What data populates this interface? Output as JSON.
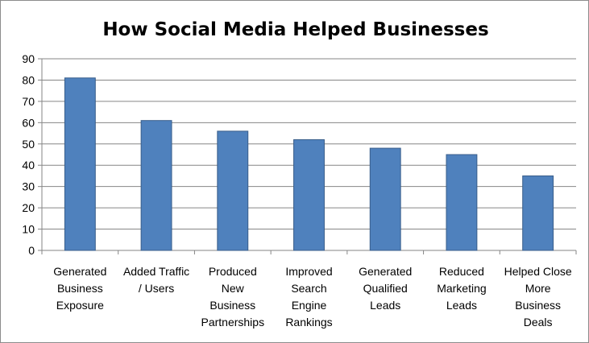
{
  "chart_data": {
    "type": "bar",
    "title": "How Social Media Helped Businesses",
    "xlabel": "",
    "ylabel": "",
    "categories": [
      [
        "Generated",
        "Business",
        "Exposure"
      ],
      [
        "Added Traffic",
        "/ Users"
      ],
      [
        "Produced",
        "New",
        "Business",
        "Partnerships"
      ],
      [
        "Improved",
        "Search",
        "Engine",
        "Rankings"
      ],
      [
        "Generated",
        "Qualified",
        "Leads"
      ],
      [
        "Reduced",
        "Marketing",
        "Leads"
      ],
      [
        "Helped Close",
        "More",
        "Business",
        "Deals"
      ]
    ],
    "values": [
      81,
      61,
      56,
      52,
      48,
      45,
      35
    ],
    "ylim": [
      0,
      90
    ],
    "yticks": [
      0,
      10,
      20,
      30,
      40,
      50,
      60,
      70,
      80,
      90
    ],
    "grid": true,
    "legend": "none",
    "bar_color": "#4f81bd",
    "bar_edge_color": "#385d8a",
    "grid_color": "#868686"
  }
}
